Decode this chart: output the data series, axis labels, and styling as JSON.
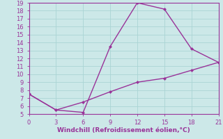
{
  "line1_x": [
    0,
    3,
    6,
    9,
    12,
    15,
    18,
    21
  ],
  "line1_y": [
    7.5,
    5.5,
    5.2,
    13.5,
    19.0,
    18.2,
    13.2,
    11.5
  ],
  "line2_x": [
    0,
    3,
    6,
    9,
    12,
    15,
    18,
    21
  ],
  "line2_y": [
    7.5,
    5.5,
    6.5,
    7.8,
    9.0,
    9.5,
    10.5,
    11.5
  ],
  "line_color": "#993399",
  "bg_color": "#cce8e8",
  "grid_color": "#aad4d4",
  "xlabel": "Windchill (Refroidissement éolien,°C)",
  "xlim": [
    0,
    21
  ],
  "ylim": [
    5,
    19
  ],
  "xticks": [
    0,
    3,
    6,
    9,
    12,
    15,
    18,
    21
  ],
  "yticks": [
    5,
    6,
    7,
    8,
    9,
    10,
    11,
    12,
    13,
    14,
    15,
    16,
    17,
    18,
    19
  ],
  "marker": "D",
  "markersize": 2.5,
  "linewidth": 1.0
}
